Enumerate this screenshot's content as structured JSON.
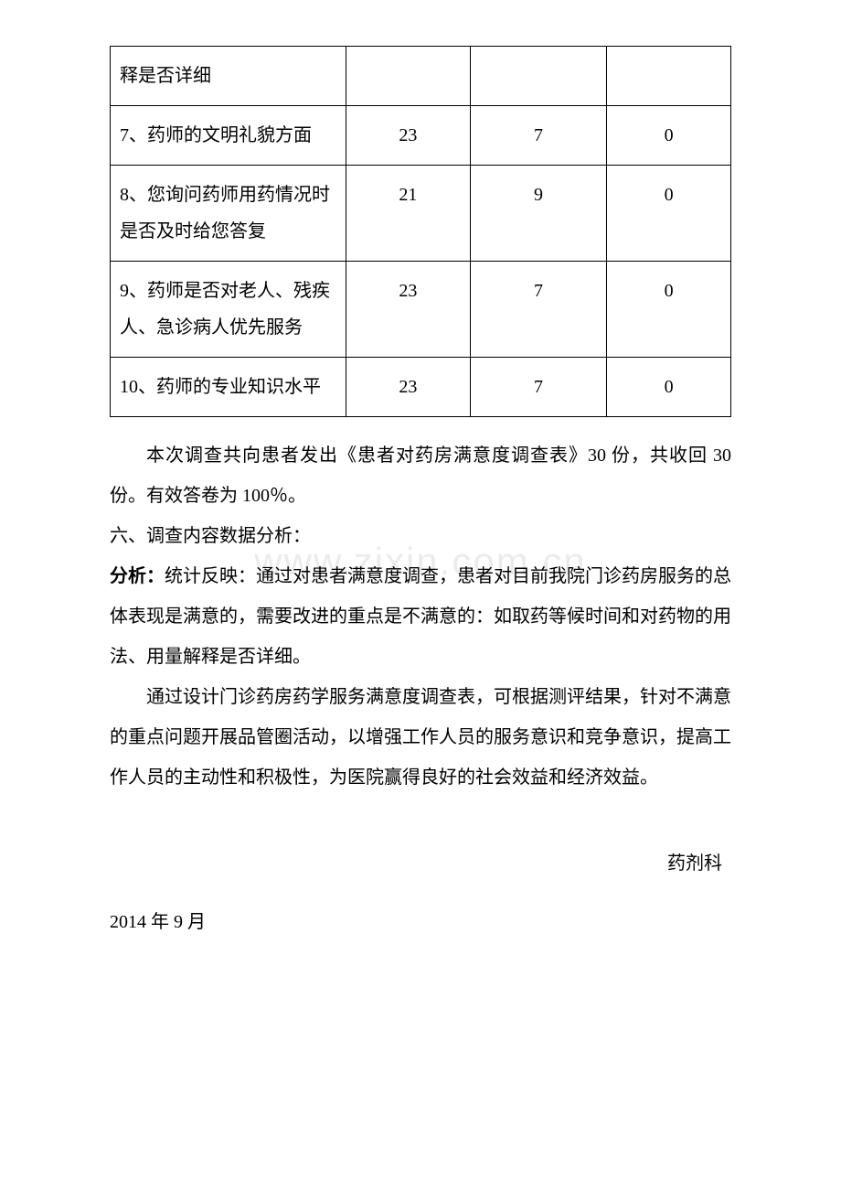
{
  "table": {
    "rows": [
      {
        "label": "释是否详细",
        "col2": "",
        "col3": "",
        "col4": ""
      },
      {
        "label": "7、药师的文明礼貌方面",
        "col2": "23",
        "col3": "7",
        "col4": "0"
      },
      {
        "label": "8、您询问药师用药情况时是否及时给您答复",
        "col2": "21",
        "col3": "9",
        "col4": "0"
      },
      {
        "label": "9、药师是否对老人、残疾人、急诊病人优先服务",
        "col2": "23",
        "col3": "7",
        "col4": "0"
      },
      {
        "label": "10、药师的专业知识水平",
        "col2": "23",
        "col3": "7",
        "col4": "0"
      }
    ]
  },
  "paragraphs": {
    "p1": "本次调查共向患者发出《患者对药房满意度调查表》30 份，共收回 30 份。有效答卷为 100％。",
    "section": "六、调查内容数据分析：",
    "analysis_label": "分析：",
    "analysis_text": "统计反映：通过对患者满意度调查，患者对目前我院门诊药房服务的总体表现是满意的，需要改进的重点是不满意的：如取药等候时间和对药物的用法、用量解释是否详细。",
    "p2": "通过设计门诊药房药学服务满意度调查表，可根据测评结果，针对不满意的重点问题开展品管圈活动，以增强工作人员的服务意识和竞争意识，提高工作人员的主动性和积极性，为医院赢得良好的社会效益和经济效益。"
  },
  "signature": "药剂科",
  "date": "2014 年 9 月",
  "watermark": "www.zixin.com.cn",
  "colors": {
    "text": "#000000",
    "background": "#ffffff",
    "border": "#000000",
    "watermark": "rgba(0,0,0,0.08)"
  },
  "fonts": {
    "body_size": 20,
    "line_height": 2.2
  }
}
